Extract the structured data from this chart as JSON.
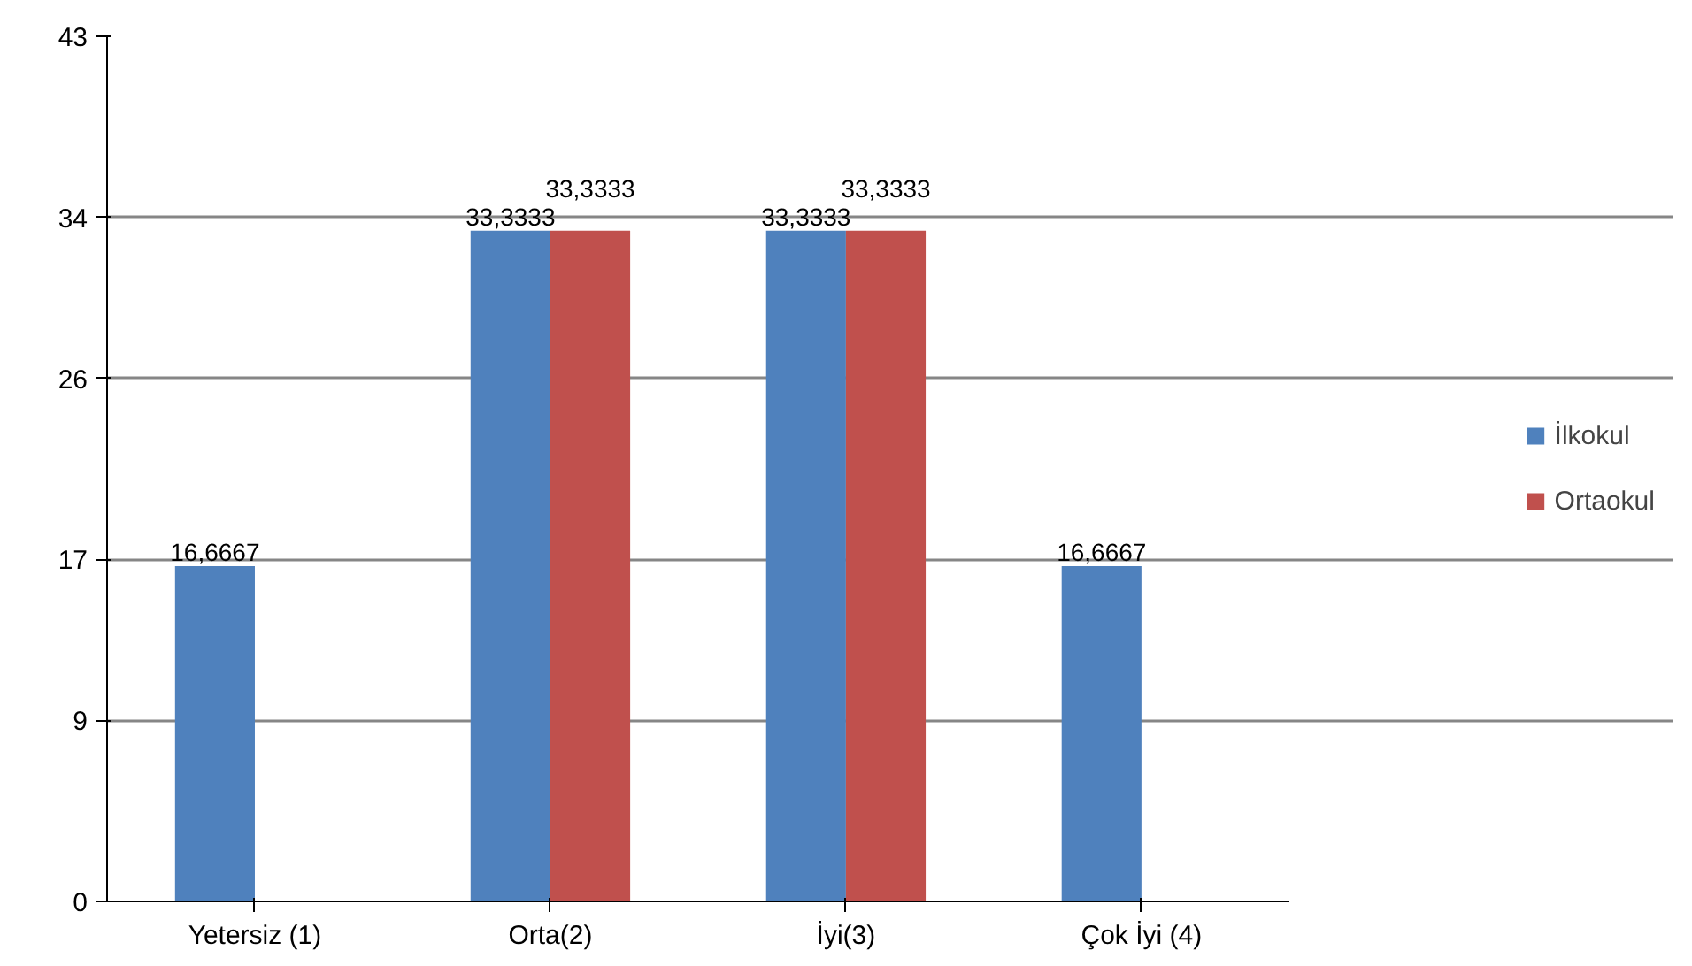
{
  "chart_data": {
    "type": "bar",
    "categories": [
      "Yetersiz (1)",
      "Orta(2)",
      "İyi(3)",
      "Çok İyi (4)"
    ],
    "series": [
      {
        "name": "İlkokul",
        "color": "#4f81bd",
        "values": [
          16.6667,
          33.3333,
          33.3333,
          16.6667
        ],
        "value_labels": [
          "16,6667",
          "33,3333",
          "33,3333",
          "16,6667"
        ]
      },
      {
        "name": "Ortaokul",
        "color": "#c0504d",
        "values": [
          null,
          33.3333,
          33.3333,
          null
        ],
        "value_labels": [
          null,
          "33,3333",
          "33,3333",
          null
        ]
      }
    ],
    "ylim": [
      0,
      43
    ],
    "yticks": [
      0,
      9,
      17,
      26,
      34,
      43
    ],
    "grid": "y",
    "legend": "right"
  }
}
